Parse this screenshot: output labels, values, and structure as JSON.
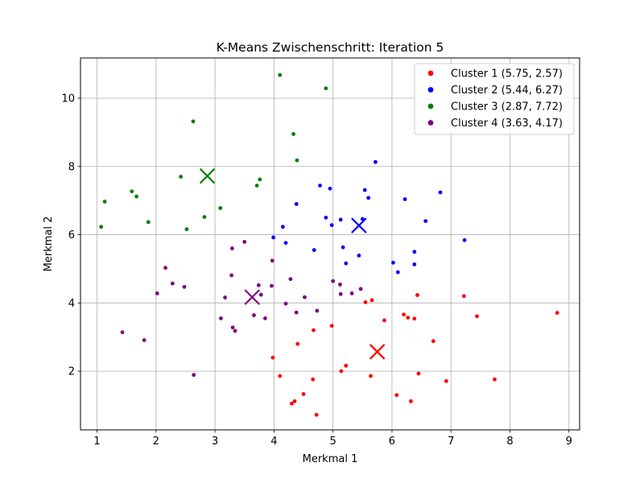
{
  "chart_data": {
    "type": "scatter",
    "title": "K-Means Zwischenschritt: Iteration 5",
    "xlabel": "Merkmal 1",
    "ylabel": "Merkmal 2",
    "xlim": [
      0.72,
      9.18
    ],
    "ylim": [
      0.28,
      11.18
    ],
    "xticks": [
      1,
      2,
      3,
      4,
      5,
      6,
      7,
      8,
      9
    ],
    "yticks": [
      2,
      4,
      6,
      8,
      10
    ],
    "grid": true,
    "legend_position": "top-right",
    "series": [
      {
        "name": "Cluster 1 (5.75, 2.57)",
        "color": "#ff0000",
        "centroid": [
          5.75,
          2.57
        ],
        "points": [
          [
            3.98,
            2.4
          ],
          [
            4.1,
            1.86
          ],
          [
            4.3,
            1.05
          ],
          [
            4.35,
            1.12
          ],
          [
            4.4,
            2.8
          ],
          [
            4.5,
            1.33
          ],
          [
            4.66,
            1.76
          ],
          [
            4.67,
            3.2
          ],
          [
            4.72,
            0.72
          ],
          [
            4.98,
            3.33
          ],
          [
            5.14,
            2.0
          ],
          [
            5.22,
            2.16
          ],
          [
            5.55,
            4.02
          ],
          [
            5.64,
            1.86
          ],
          [
            5.66,
            4.08
          ],
          [
            5.87,
            3.49
          ],
          [
            6.08,
            1.3
          ],
          [
            6.2,
            3.66
          ],
          [
            6.27,
            3.57
          ],
          [
            6.32,
            1.12
          ],
          [
            6.38,
            3.54
          ],
          [
            6.43,
            4.23
          ],
          [
            6.45,
            1.93
          ],
          [
            6.7,
            2.88
          ],
          [
            6.92,
            1.71
          ],
          [
            7.22,
            4.2
          ],
          [
            7.44,
            3.61
          ],
          [
            7.74,
            1.76
          ],
          [
            8.8,
            3.71
          ]
        ]
      },
      {
        "name": "Cluster 2 (5.44, 6.27)",
        "color": "#0000ff",
        "centroid": [
          5.44,
          6.27
        ],
        "points": [
          [
            3.99,
            5.92
          ],
          [
            4.15,
            6.23
          ],
          [
            4.2,
            5.76
          ],
          [
            4.38,
            6.9
          ],
          [
            4.68,
            5.55
          ],
          [
            4.78,
            7.44
          ],
          [
            4.88,
            6.5
          ],
          [
            4.95,
            7.35
          ],
          [
            4.98,
            6.28
          ],
          [
            5.13,
            6.44
          ],
          [
            5.17,
            5.63
          ],
          [
            5.22,
            5.16
          ],
          [
            5.44,
            5.39
          ],
          [
            5.5,
            6.46
          ],
          [
            5.54,
            7.31
          ],
          [
            5.6,
            7.08
          ],
          [
            5.72,
            8.13
          ],
          [
            6.02,
            5.18
          ],
          [
            6.1,
            4.9
          ],
          [
            6.22,
            7.04
          ],
          [
            6.38,
            5.5
          ],
          [
            6.38,
            5.13
          ],
          [
            6.57,
            6.4
          ],
          [
            6.82,
            7.24
          ],
          [
            7.23,
            5.84
          ]
        ]
      },
      {
        "name": "Cluster 3 (2.87, 7.72)",
        "color": "#008000",
        "centroid": [
          2.87,
          7.72
        ],
        "points": [
          [
            1.07,
            6.23
          ],
          [
            1.13,
            6.97
          ],
          [
            1.59,
            7.27
          ],
          [
            1.67,
            7.12
          ],
          [
            1.87,
            6.37
          ],
          [
            2.42,
            7.7
          ],
          [
            2.52,
            6.16
          ],
          [
            2.63,
            9.32
          ],
          [
            2.82,
            6.52
          ],
          [
            3.09,
            6.78
          ],
          [
            3.71,
            7.44
          ],
          [
            3.76,
            7.62
          ],
          [
            4.1,
            10.68
          ],
          [
            4.33,
            8.95
          ],
          [
            4.39,
            8.18
          ],
          [
            4.88,
            10.29
          ]
        ]
      },
      {
        "name": "Cluster 4 (3.63, 4.17)",
        "color": "#800080",
        "centroid": [
          3.63,
          4.17
        ],
        "points": [
          [
            1.43,
            3.14
          ],
          [
            1.8,
            2.91
          ],
          [
            2.02,
            4.28
          ],
          [
            2.16,
            5.03
          ],
          [
            2.28,
            4.57
          ],
          [
            2.48,
            4.47
          ],
          [
            2.64,
            1.89
          ],
          [
            3.1,
            3.55
          ],
          [
            3.17,
            4.16
          ],
          [
            3.28,
            4.81
          ],
          [
            3.29,
            5.6
          ],
          [
            3.3,
            3.28
          ],
          [
            3.34,
            3.18
          ],
          [
            3.5,
            5.79
          ],
          [
            3.66,
            3.64
          ],
          [
            3.74,
            4.52
          ],
          [
            3.78,
            4.24
          ],
          [
            3.85,
            3.55
          ],
          [
            3.96,
            4.5
          ],
          [
            3.97,
            5.24
          ],
          [
            4.2,
            3.98
          ],
          [
            4.28,
            4.7
          ],
          [
            4.38,
            3.72
          ],
          [
            4.52,
            4.17
          ],
          [
            4.73,
            3.77
          ],
          [
            5.0,
            4.64
          ],
          [
            5.12,
            4.54
          ],
          [
            5.13,
            4.26
          ],
          [
            5.32,
            4.28
          ],
          [
            5.47,
            4.41
          ]
        ]
      }
    ]
  }
}
